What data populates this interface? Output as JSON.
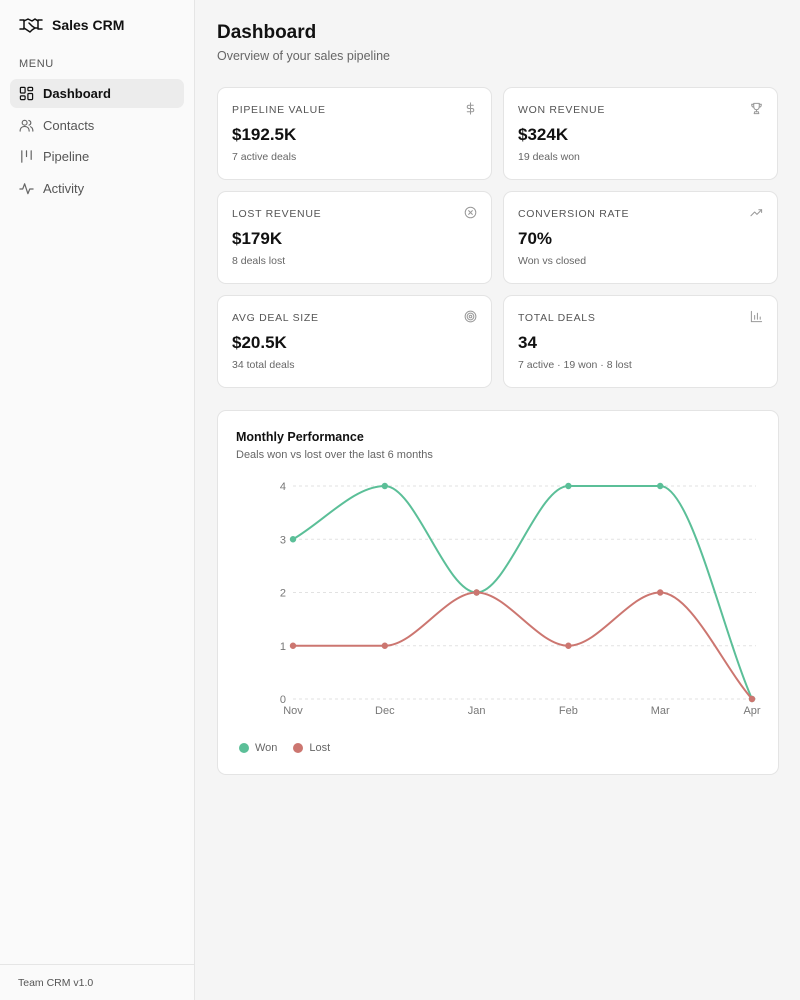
{
  "sidebar": {
    "brand": "Sales CRM",
    "menu_heading": "MENU",
    "items": [
      {
        "label": "Dashboard",
        "icon": "dashboard-icon",
        "active": true
      },
      {
        "label": "Contacts",
        "icon": "users-icon",
        "active": false
      },
      {
        "label": "Pipeline",
        "icon": "kanban-icon",
        "active": false
      },
      {
        "label": "Activity",
        "icon": "activity-icon",
        "active": false
      }
    ],
    "footer": "Team CRM v1.0"
  },
  "header": {
    "title": "Dashboard",
    "subtitle": "Overview of your sales pipeline"
  },
  "cards": [
    {
      "label": "PIPELINE VALUE",
      "value": "$192.5K",
      "sub": "7 active deals",
      "icon": "dollar-icon"
    },
    {
      "label": "WON REVENUE",
      "value": "$324K",
      "sub": "19 deals won",
      "icon": "trophy-icon"
    },
    {
      "label": "LOST REVENUE",
      "value": "$179K",
      "sub": "8 deals lost",
      "icon": "x-circle-icon"
    },
    {
      "label": "CONVERSION RATE",
      "value": "70%",
      "sub": "Won vs closed",
      "icon": "trending-up-icon"
    },
    {
      "label": "AVG DEAL SIZE",
      "value": "$20.5K",
      "sub": "34 total deals",
      "icon": "target-icon"
    },
    {
      "label": "TOTAL DEALS",
      "value": "34",
      "sub": "7 active · 19 won · 8 lost",
      "icon": "bar-chart-icon"
    }
  ],
  "chart_card": {
    "title": "Monthly Performance",
    "subtitle": "Deals won vs lost over the last 6 months"
  },
  "colors": {
    "won": "#5bbf98",
    "lost": "#cc7670",
    "grid": "#e2e2e2",
    "axis_text": "#777777"
  },
  "chart_data": {
    "type": "line",
    "categories": [
      "Nov",
      "Dec",
      "Jan",
      "Feb",
      "Mar",
      "Apr"
    ],
    "series": [
      {
        "name": "Won",
        "values": [
          3,
          4,
          2,
          4,
          4,
          0
        ]
      },
      {
        "name": "Lost",
        "values": [
          1,
          1,
          2,
          1,
          2,
          0
        ]
      }
    ],
    "yticks": [
      "0",
      "1",
      "2",
      "3",
      "4"
    ],
    "ylim": [
      0,
      4
    ],
    "grid": true,
    "legend": "bottom-left"
  }
}
